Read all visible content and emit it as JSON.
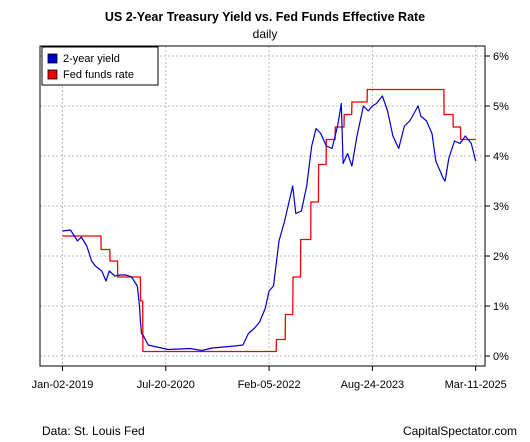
{
  "chart_data": {
    "type": "line",
    "title": "US 2-Year Treasury Yield vs. Fed Funds Effective Rate",
    "subtitle": "daily",
    "xlabel": "",
    "ylabel": "",
    "x_tick_labels": [
      "Jan-02-2019",
      "Jul-20-2020",
      "Feb-05-2022",
      "Aug-24-2023",
      "Mar-11-2025"
    ],
    "y_tick_labels": [
      "0%",
      "1%",
      "2%",
      "3%",
      "4%",
      "5%",
      "6%"
    ],
    "y_ticks": [
      0,
      1,
      2,
      3,
      4,
      5,
      6
    ],
    "ylim": [
      -0.2,
      6.2
    ],
    "xlim": [
      "2018-09-01",
      "2025-05-01"
    ],
    "grid": true,
    "legend_position": "top-left",
    "source_text": "Data: St. Louis Fed",
    "brand_text": "CapitalSpectator.com",
    "series": [
      {
        "name": "2-year yield",
        "color": "#0000cc",
        "points": [
          [
            "2019-01-02",
            2.5
          ],
          [
            "2019-02-15",
            2.52
          ],
          [
            "2019-03-25",
            2.3
          ],
          [
            "2019-04-15",
            2.38
          ],
          [
            "2019-05-15",
            2.2
          ],
          [
            "2019-06-10",
            1.9
          ],
          [
            "2019-07-01",
            1.8
          ],
          [
            "2019-08-05",
            1.7
          ],
          [
            "2019-08-28",
            1.5
          ],
          [
            "2019-09-15",
            1.7
          ],
          [
            "2019-10-15",
            1.6
          ],
          [
            "2019-11-15",
            1.62
          ],
          [
            "2019-12-15",
            1.62
          ],
          [
            "2020-01-15",
            1.58
          ],
          [
            "2020-02-15",
            1.4
          ],
          [
            "2020-02-27",
            1.0
          ],
          [
            "2020-03-03",
            0.7
          ],
          [
            "2020-03-09",
            0.45
          ],
          [
            "2020-03-20",
            0.4
          ],
          [
            "2020-04-15",
            0.22
          ],
          [
            "2020-06-01",
            0.18
          ],
          [
            "2020-08-01",
            0.13
          ],
          [
            "2020-10-01",
            0.14
          ],
          [
            "2020-12-01",
            0.15
          ],
          [
            "2021-02-01",
            0.11
          ],
          [
            "2021-04-01",
            0.16
          ],
          [
            "2021-06-01",
            0.18
          ],
          [
            "2021-08-01",
            0.2
          ],
          [
            "2021-09-15",
            0.22
          ],
          [
            "2021-10-15",
            0.45
          ],
          [
            "2021-11-15",
            0.55
          ],
          [
            "2021-12-15",
            0.68
          ],
          [
            "2022-01-15",
            0.95
          ],
          [
            "2022-02-05",
            1.3
          ],
          [
            "2022-03-01",
            1.4
          ],
          [
            "2022-03-31",
            2.3
          ],
          [
            "2022-05-01",
            2.7
          ],
          [
            "2022-06-14",
            3.4
          ],
          [
            "2022-07-01",
            2.85
          ],
          [
            "2022-08-01",
            2.9
          ],
          [
            "2022-08-30",
            3.4
          ],
          [
            "2022-09-26",
            4.2
          ],
          [
            "2022-10-20",
            4.55
          ],
          [
            "2022-11-15",
            4.45
          ],
          [
            "2022-12-15",
            4.2
          ],
          [
            "2023-01-15",
            4.15
          ],
          [
            "2023-02-15",
            4.6
          ],
          [
            "2023-03-07",
            5.05
          ],
          [
            "2023-03-17",
            3.85
          ],
          [
            "2023-04-10",
            4.05
          ],
          [
            "2023-05-04",
            3.8
          ],
          [
            "2023-06-01",
            4.4
          ],
          [
            "2023-07-06",
            5.0
          ],
          [
            "2023-08-01",
            4.9
          ],
          [
            "2023-08-24",
            5.0
          ],
          [
            "2023-09-15",
            5.05
          ],
          [
            "2023-10-18",
            5.2
          ],
          [
            "2023-11-15",
            4.9
          ],
          [
            "2023-12-14",
            4.4
          ],
          [
            "2024-01-15",
            4.15
          ],
          [
            "2024-02-15",
            4.6
          ],
          [
            "2024-03-15",
            4.7
          ],
          [
            "2024-04-30",
            5.0
          ],
          [
            "2024-05-15",
            4.8
          ],
          [
            "2024-06-15",
            4.7
          ],
          [
            "2024-07-15",
            4.45
          ],
          [
            "2024-08-05",
            3.9
          ],
          [
            "2024-09-15",
            3.55
          ],
          [
            "2024-09-25",
            3.5
          ],
          [
            "2024-10-15",
            3.95
          ],
          [
            "2024-11-15",
            4.3
          ],
          [
            "2024-12-15",
            4.25
          ],
          [
            "2025-01-13",
            4.4
          ],
          [
            "2025-02-15",
            4.25
          ],
          [
            "2025-03-11",
            3.9
          ]
        ]
      },
      {
        "name": "Fed funds rate",
        "color": "#ee0000",
        "points": [
          [
            "2019-01-02",
            2.4
          ],
          [
            "2019-07-31",
            2.4
          ],
          [
            "2019-08-01",
            2.13
          ],
          [
            "2019-09-18",
            2.13
          ],
          [
            "2019-09-19",
            1.9
          ],
          [
            "2019-10-30",
            1.9
          ],
          [
            "2019-10-31",
            1.58
          ],
          [
            "2020-03-03",
            1.58
          ],
          [
            "2020-03-04",
            1.1
          ],
          [
            "2020-03-16",
            1.1
          ],
          [
            "2020-03-17",
            0.09
          ],
          [
            "2022-03-16",
            0.09
          ],
          [
            "2022-03-17",
            0.33
          ],
          [
            "2022-05-04",
            0.33
          ],
          [
            "2022-05-05",
            0.83
          ],
          [
            "2022-06-15",
            0.83
          ],
          [
            "2022-06-16",
            1.58
          ],
          [
            "2022-07-27",
            1.58
          ],
          [
            "2022-07-28",
            2.33
          ],
          [
            "2022-09-21",
            2.33
          ],
          [
            "2022-09-22",
            3.08
          ],
          [
            "2022-11-02",
            3.08
          ],
          [
            "2022-11-03",
            3.83
          ],
          [
            "2022-12-14",
            3.83
          ],
          [
            "2022-12-15",
            4.33
          ],
          [
            "2023-02-01",
            4.33
          ],
          [
            "2023-02-02",
            4.58
          ],
          [
            "2023-03-22",
            4.58
          ],
          [
            "2023-03-23",
            4.83
          ],
          [
            "2023-05-03",
            4.83
          ],
          [
            "2023-05-04",
            5.08
          ],
          [
            "2023-07-26",
            5.08
          ],
          [
            "2023-07-27",
            5.33
          ],
          [
            "2024-09-18",
            5.33
          ],
          [
            "2024-09-19",
            4.83
          ],
          [
            "2024-11-07",
            4.83
          ],
          [
            "2024-11-08",
            4.58
          ],
          [
            "2024-12-18",
            4.58
          ],
          [
            "2024-12-19",
            4.33
          ],
          [
            "2025-03-11",
            4.33
          ]
        ]
      }
    ]
  }
}
